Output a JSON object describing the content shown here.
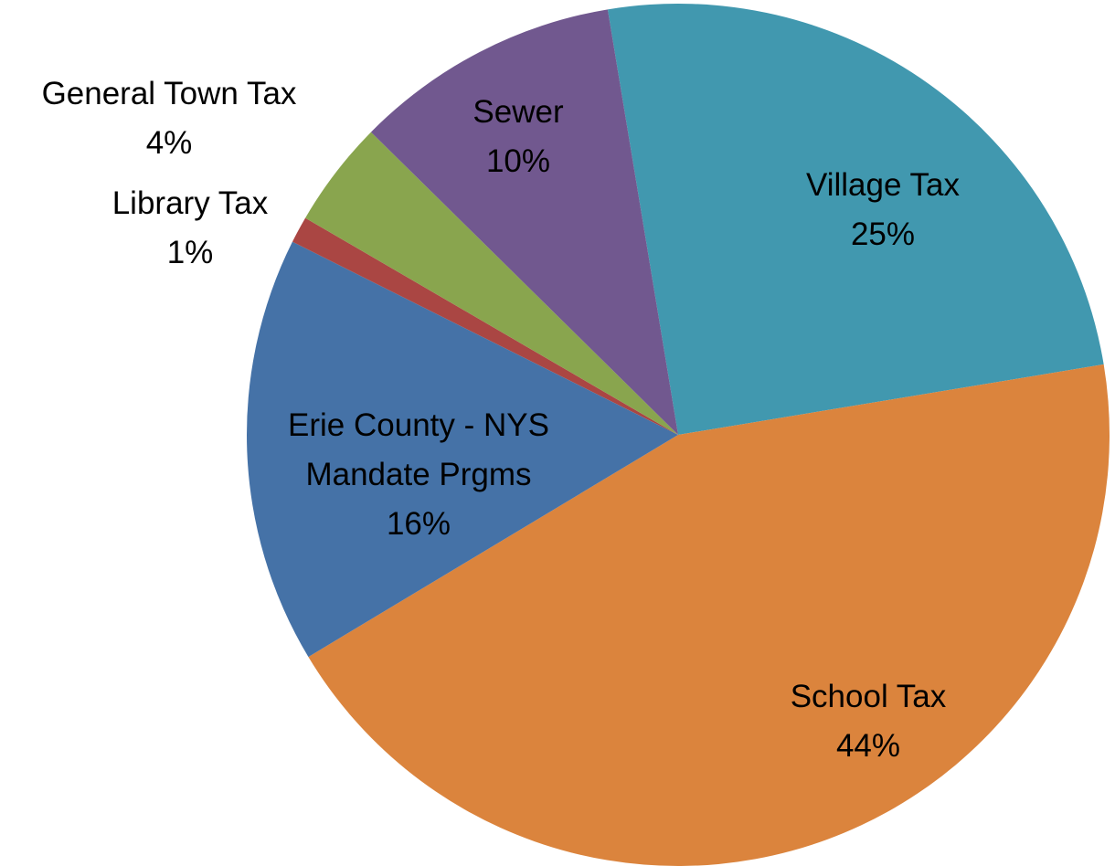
{
  "chart_data": {
    "type": "pie",
    "categories": [
      "Village Tax",
      "School Tax",
      "Erie County - NYS Mandate Prgms",
      "Library Tax",
      "General Town Tax",
      "Sewer"
    ],
    "values": [
      25,
      44,
      16,
      1,
      4,
      10
    ],
    "value_labels": [
      "25%",
      "44%",
      "16%",
      "1%",
      "4%",
      "10%"
    ],
    "colors": [
      "#4198af",
      "#db843d",
      "#4572a7",
      "#aa4643",
      "#89a54e",
      "#71588f"
    ]
  }
}
